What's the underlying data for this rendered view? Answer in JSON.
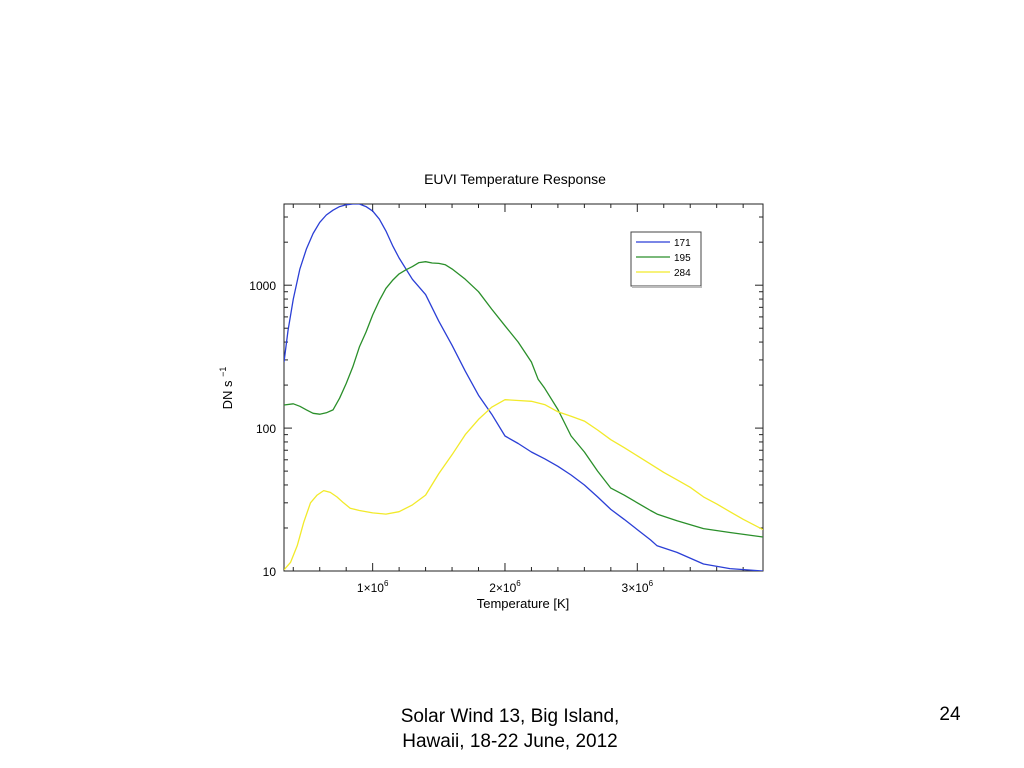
{
  "chart_data": {
    "type": "line",
    "title": "EUVI Temperature Response",
    "xlabel": "Temperature [K]",
    "ylabel": "DN s",
    "ylabel_superscript": "−1",
    "xlim": [
      330000,
      3950000
    ],
    "ylim": [
      10,
      3700
    ],
    "yscale": "log",
    "grid": false,
    "legend_position": "top-right",
    "x_ticks": [
      {
        "value": 1000000,
        "base": "1×10",
        "exp": "6"
      },
      {
        "value": 2000000,
        "base": "2×10",
        "exp": "6"
      },
      {
        "value": 3000000,
        "base": "3×10",
        "exp": "6"
      }
    ],
    "y_ticks": [
      {
        "value": 10,
        "label": "10"
      },
      {
        "value": 100,
        "label": "100"
      },
      {
        "value": 1000,
        "label": "1000"
      }
    ],
    "series": [
      {
        "name": "171",
        "color": "#2b3fd6",
        "points": [
          [
            330000,
            290
          ],
          [
            360000,
            480
          ],
          [
            400000,
            800
          ],
          [
            450000,
            1300
          ],
          [
            500000,
            1800
          ],
          [
            550000,
            2300
          ],
          [
            600000,
            2750
          ],
          [
            650000,
            3100
          ],
          [
            700000,
            3350
          ],
          [
            750000,
            3550
          ],
          [
            800000,
            3650
          ],
          [
            850000,
            3700
          ],
          [
            900000,
            3700
          ],
          [
            950000,
            3550
          ],
          [
            1000000,
            3300
          ],
          [
            1050000,
            2900
          ],
          [
            1100000,
            2400
          ],
          [
            1150000,
            1900
          ],
          [
            1200000,
            1550
          ],
          [
            1300000,
            1100
          ],
          [
            1400000,
            860
          ],
          [
            1500000,
            560
          ],
          [
            1600000,
            380
          ],
          [
            1700000,
            250
          ],
          [
            1800000,
            170
          ],
          [
            1900000,
            125
          ],
          [
            2000000,
            88
          ],
          [
            2100000,
            78
          ],
          [
            2200000,
            68
          ],
          [
            2300000,
            61
          ],
          [
            2400000,
            54
          ],
          [
            2500000,
            47
          ],
          [
            2600000,
            40
          ],
          [
            2700000,
            33
          ],
          [
            2800000,
            27
          ],
          [
            2900000,
            23
          ],
          [
            3000000,
            19.5
          ],
          [
            3100000,
            16.5
          ],
          [
            3150000,
            15
          ],
          [
            3300000,
            13.5
          ],
          [
            3500000,
            11.2
          ],
          [
            3700000,
            10.4
          ],
          [
            3950000,
            10
          ]
        ]
      },
      {
        "name": "195",
        "color": "#2a8f2a",
        "points": [
          [
            330000,
            145
          ],
          [
            400000,
            148
          ],
          [
            450000,
            142
          ],
          [
            500000,
            134
          ],
          [
            550000,
            127
          ],
          [
            600000,
            125
          ],
          [
            650000,
            128
          ],
          [
            700000,
            134
          ],
          [
            750000,
            162
          ],
          [
            800000,
            205
          ],
          [
            850000,
            268
          ],
          [
            900000,
            370
          ],
          [
            950000,
            470
          ],
          [
            1000000,
            620
          ],
          [
            1050000,
            780
          ],
          [
            1100000,
            950
          ],
          [
            1150000,
            1080
          ],
          [
            1200000,
            1200
          ],
          [
            1250000,
            1280
          ],
          [
            1300000,
            1350
          ],
          [
            1350000,
            1440
          ],
          [
            1400000,
            1460
          ],
          [
            1450000,
            1430
          ],
          [
            1500000,
            1420
          ],
          [
            1550000,
            1390
          ],
          [
            1600000,
            1300
          ],
          [
            1700000,
            1100
          ],
          [
            1800000,
            900
          ],
          [
            1900000,
            680
          ],
          [
            2000000,
            520
          ],
          [
            2100000,
            400
          ],
          [
            2200000,
            290
          ],
          [
            2250000,
            220
          ],
          [
            2300000,
            190
          ],
          [
            2400000,
            135
          ],
          [
            2500000,
            88
          ],
          [
            2600000,
            68
          ],
          [
            2700000,
            50
          ],
          [
            2800000,
            38
          ],
          [
            2900000,
            34
          ],
          [
            3000000,
            30
          ],
          [
            3100000,
            26.5
          ],
          [
            3150000,
            25
          ],
          [
            3300000,
            22.5
          ],
          [
            3500000,
            19.8
          ],
          [
            3700000,
            18.6
          ],
          [
            3950000,
            17.3
          ]
        ]
      },
      {
        "name": "284",
        "color": "#f2ea2a",
        "points": [
          [
            330000,
            10.2
          ],
          [
            380000,
            11.5
          ],
          [
            430000,
            15
          ],
          [
            480000,
            22
          ],
          [
            530000,
            30
          ],
          [
            580000,
            34
          ],
          [
            630000,
            36.5
          ],
          [
            680000,
            35.5
          ],
          [
            730000,
            33
          ],
          [
            780000,
            30
          ],
          [
            830000,
            27.5
          ],
          [
            900000,
            26.5
          ],
          [
            1000000,
            25.5
          ],
          [
            1100000,
            25
          ],
          [
            1200000,
            26
          ],
          [
            1300000,
            29
          ],
          [
            1400000,
            34
          ],
          [
            1500000,
            48
          ],
          [
            1600000,
            65
          ],
          [
            1700000,
            90
          ],
          [
            1800000,
            115
          ],
          [
            1900000,
            140
          ],
          [
            2000000,
            158
          ],
          [
            2100000,
            156
          ],
          [
            2200000,
            154
          ],
          [
            2300000,
            146
          ],
          [
            2400000,
            130
          ],
          [
            2500000,
            121
          ],
          [
            2600000,
            112
          ],
          [
            2700000,
            97
          ],
          [
            2800000,
            83
          ],
          [
            2900000,
            73
          ],
          [
            3000000,
            64
          ],
          [
            3100000,
            56
          ],
          [
            3200000,
            49
          ],
          [
            3300000,
            43.5
          ],
          [
            3400000,
            38.5
          ],
          [
            3500000,
            33
          ],
          [
            3600000,
            29.5
          ],
          [
            3700000,
            26
          ],
          [
            3800000,
            23
          ],
          [
            3950000,
            19.5
          ]
        ]
      }
    ]
  },
  "footer": {
    "line1": "Solar Wind 13,  Big Island,",
    "line2": "Hawaii, 18-22 June, 2012",
    "page_number": "24"
  }
}
